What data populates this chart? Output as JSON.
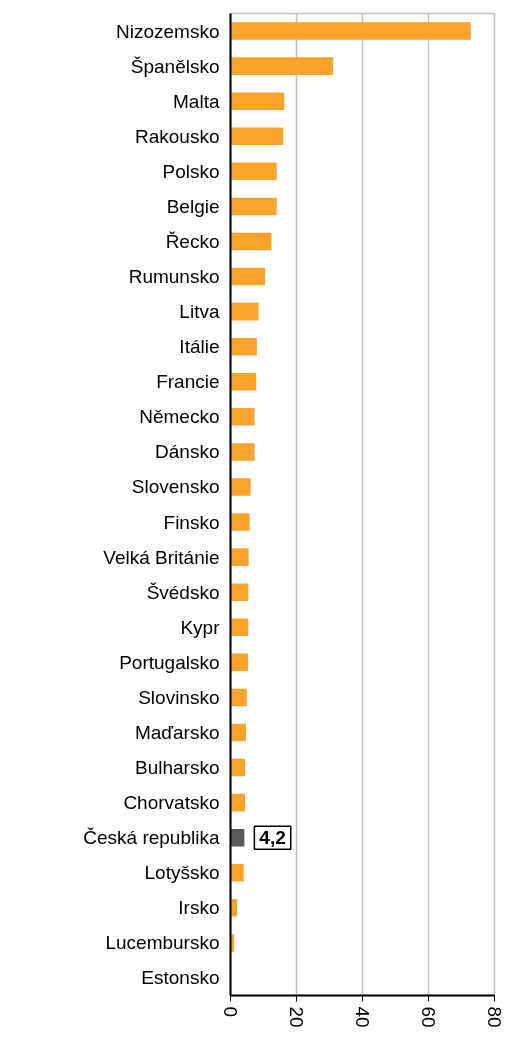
{
  "chart_data": {
    "type": "bar",
    "orientation": "horizontal",
    "categories": [
      "Nizozemsko",
      "Španělsko",
      "Malta",
      "Rakousko",
      "Polsko",
      "Belgie",
      "Řecko",
      "Rumunsko",
      "Litva",
      "Itálie",
      "Francie",
      "Německo",
      "Dánsko",
      "Slovensko",
      "Finsko",
      "Velká Británie",
      "Švédsko",
      "Kypr",
      "Portugalsko",
      "Slovinsko",
      "Maďarsko",
      "Bulharsko",
      "Chorvatsko",
      "Česká republika",
      "Lotyšsko",
      "Irsko",
      "Lucembursko",
      "Estonsko"
    ],
    "values": [
      72.8,
      31.1,
      16.3,
      16.0,
      14.0,
      14.0,
      12.4,
      10.5,
      8.5,
      8.0,
      7.8,
      7.3,
      7.3,
      6.1,
      5.8,
      5.5,
      5.4,
      5.4,
      5.3,
      4.9,
      4.7,
      4.4,
      4.4,
      4.2,
      4.0,
      2.0,
      1.1,
      0
    ],
    "colors": [
      "#f9a32a",
      "#f9a32a",
      "#f9a32a",
      "#f9a32a",
      "#f9a32a",
      "#f9a32a",
      "#f9a32a",
      "#f9a32a",
      "#f9a32a",
      "#f9a32a",
      "#f9a32a",
      "#f9a32a",
      "#f9a32a",
      "#f9a32a",
      "#f9a32a",
      "#f9a32a",
      "#f9a32a",
      "#f9a32a",
      "#f9a32a",
      "#f9a32a",
      "#f9a32a",
      "#f9a32a",
      "#f9a32a",
      "#595959",
      "#f9a32a",
      "#f9a32a",
      "#f9a32a",
      "#f9a32a"
    ],
    "value_labels": [
      null,
      null,
      null,
      null,
      null,
      null,
      null,
      null,
      null,
      null,
      null,
      null,
      null,
      null,
      null,
      null,
      null,
      null,
      null,
      null,
      null,
      null,
      null,
      "4,2",
      null,
      null,
      null,
      null
    ],
    "xlim": [
      0,
      80
    ],
    "xticks": [
      0,
      20,
      40,
      60,
      80
    ],
    "grid": "x"
  }
}
